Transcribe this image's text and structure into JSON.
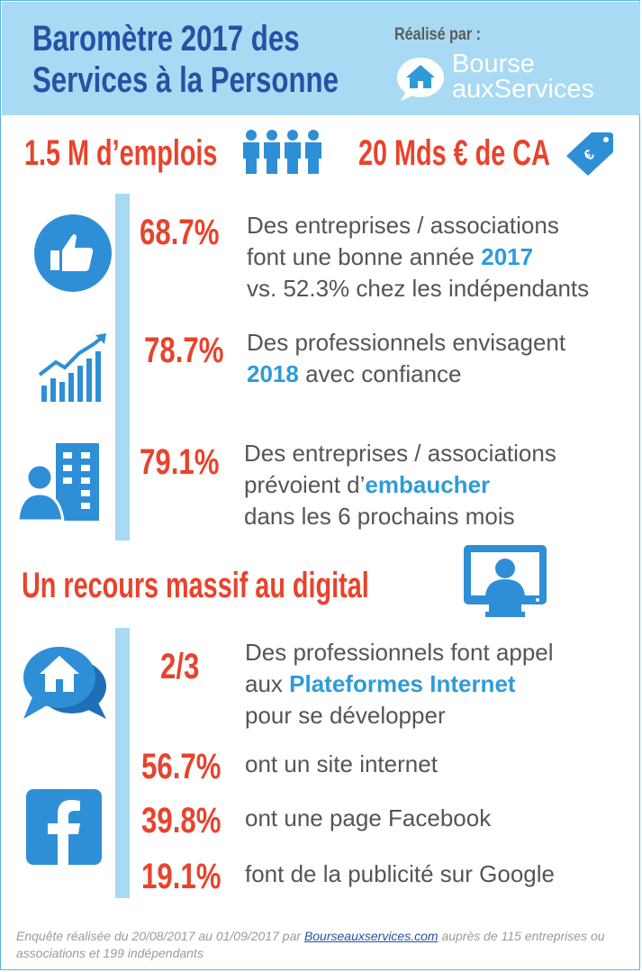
{
  "header": {
    "title_line1": "Baromètre 2017 des",
    "title_line2": "Services à la Personne",
    "realise_par": "Réalisé par :",
    "logo_line1": "Bourse",
    "logo_line2": "auxServices"
  },
  "kpis": {
    "emplois": "1.5 M d’emplois",
    "ca": "20 Mds € de CA",
    "ca_tag_symbol": "€"
  },
  "stats": [
    {
      "value": "68.7%",
      "line1": "Des entreprises / associations",
      "line2_pre": "font une bonne année ",
      "line2_hl": "2017",
      "line3": "vs. 52.3% chez les indépendants"
    },
    {
      "value": "78.7%",
      "line1": "Des professionnels envisagent",
      "line2_hl": "2018",
      "line2_post": " avec confiance"
    },
    {
      "value": "79.1%",
      "line1": "Des entreprises / associations",
      "line2_pre": "prévoient d’",
      "line2_hl": "embaucher",
      "line3": "dans les 6 prochains mois"
    }
  ],
  "digital": {
    "heading": "Un recours massif au digital",
    "items": [
      {
        "value": "2/3",
        "line1": "Des professionnels font appel",
        "line2_pre": "aux ",
        "line2_hl": "Plateformes Internet",
        "line3": "pour se développer"
      },
      {
        "value": "56.7%",
        "text": "ont un site internet"
      },
      {
        "value": "39.8%",
        "text": "ont une page Facebook"
      },
      {
        "value": "19.1%",
        "text": "font de la publicité sur Google"
      }
    ]
  },
  "footer": {
    "pre": "Enquête réalisée du 20/08/2017  au 01/09/2017  par ",
    "link": "Bourseauxservices.com",
    "post": " auprès de 115 entreprises ou associations et 199 indépendants"
  },
  "colors": {
    "header_bg": "#a8daf3",
    "title": "#2452a4",
    "accent_red": "#e8432c",
    "accent_blue": "#2e9bd8",
    "icon_blue": "#2e8fd6",
    "body_text": "#555555"
  }
}
